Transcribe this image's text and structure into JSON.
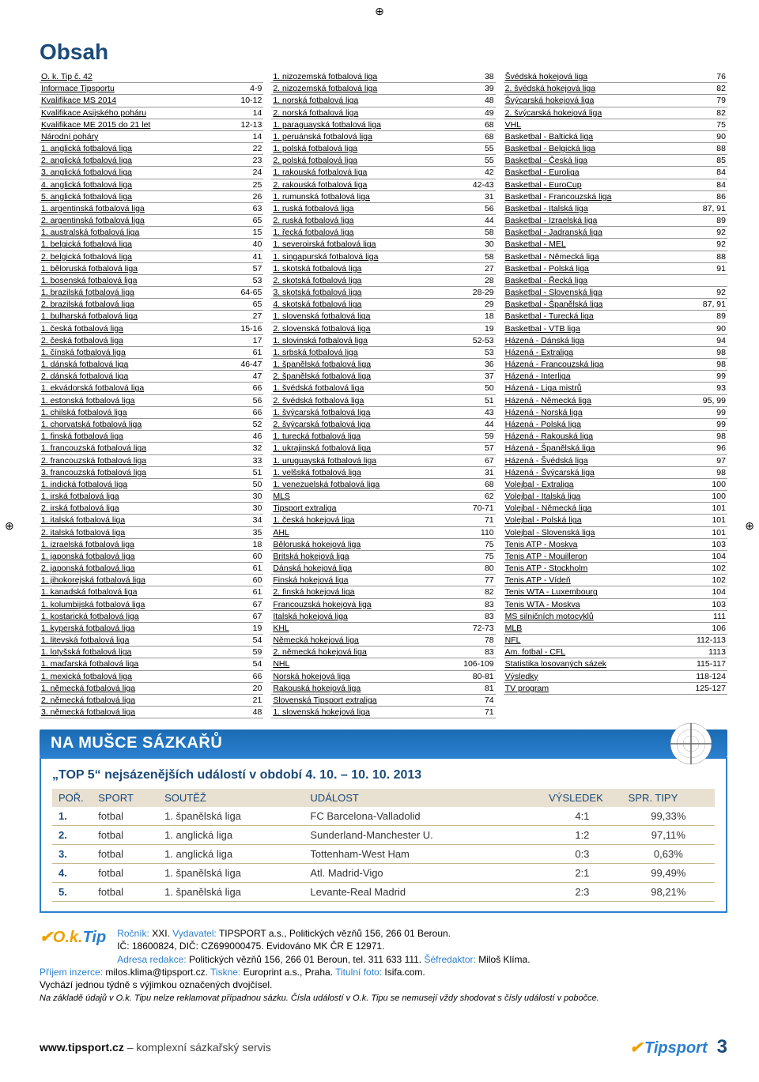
{
  "title": "Obsah",
  "toc_columns": [
    [
      [
        "O. k. Tip č. 42",
        ""
      ],
      [
        "Informace Tipsportu",
        "4-9"
      ],
      [
        "Kvalifikace MS 2014",
        "10-12"
      ],
      [
        "Kvalifikace Asijského poháru",
        "14"
      ],
      [
        "Kvalifikace ME 2015 do 21 let",
        "12-13"
      ],
      [
        "Národní poháry",
        "14"
      ],
      [
        "1. anglická fotbalová liga",
        "22"
      ],
      [
        "2. anglická fotbalová liga",
        "23"
      ],
      [
        "3. anglická fotbalová liga",
        "24"
      ],
      [
        "4. anglická fotbalová liga",
        "25"
      ],
      [
        "5. anglická fotbalová liga",
        "26"
      ],
      [
        "1. argentinská fotbalová liga",
        "63"
      ],
      [
        "2. argentinská fotbalová liga",
        "65"
      ],
      [
        "1. australská fotbalová liga",
        "15"
      ],
      [
        "1. belgická fotbalová liga",
        "40"
      ],
      [
        "2. belgická fotbalová liga",
        "41"
      ],
      [
        "1. běloruská fotbalová liga",
        "57"
      ],
      [
        "1. bosenská fotbalová liga",
        "53"
      ],
      [
        "1. brazilská fotbalová liga",
        "64-65"
      ],
      [
        "2. brazilská fotbalová liga",
        "65"
      ],
      [
        "1. bulharská fotbalová liga",
        "27"
      ],
      [
        "1. česká fotbalová liga",
        "15-16"
      ],
      [
        "2. česká fotbalová liga",
        "17"
      ],
      [
        "1. čínská fotbalová liga",
        "61"
      ],
      [
        "1. dánská fotbalová liga",
        "46-47"
      ],
      [
        "2. dánská fotbalová liga",
        "47"
      ],
      [
        "1. ekvádorská fotbalová liga",
        "66"
      ],
      [
        "1. estonská fotbalová liga",
        "56"
      ],
      [
        "1. chilská fotbalová liga",
        "66"
      ],
      [
        "1. chorvatská fotbalová liga",
        "52"
      ],
      [
        "1. finská fotbalová liga",
        "46"
      ],
      [
        "1. francouzská fotbalová liga",
        "32"
      ],
      [
        "2. francouzská fotbalová liga",
        "33"
      ],
      [
        "3. francouzská fotbalová liga",
        "51"
      ],
      [
        "1. indická fotbalová liga",
        "50"
      ],
      [
        "1. irská fotbalová liga",
        "30"
      ],
      [
        "2. irská fotbalová liga",
        "30"
      ],
      [
        "1. italská fotbalová liga",
        "34"
      ],
      [
        "2. italská fotbalová liga",
        "35"
      ],
      [
        "1. izraelská fotbalová liga",
        "18"
      ],
      [
        "1. japonská fotbalová liga",
        "60"
      ],
      [
        "2. japonská fotbalová liga",
        "61"
      ],
      [
        "1. jihokorejská fotbalová liga",
        "60"
      ],
      [
        "1. kanadská fotbalová liga",
        "61"
      ],
      [
        "1. kolumbijská fotbalová liga",
        "67"
      ],
      [
        "1. kostarická fotbalová liga",
        "67"
      ],
      [
        "1. kyperská fotbalová liga",
        "19"
      ],
      [
        "1. litevská fotbalová liga",
        "54"
      ],
      [
        "1. lotyšská fotbalová liga",
        "59"
      ],
      [
        "1. maďarská fotbalová liga",
        "54"
      ],
      [
        "1. mexická fotbalová liga",
        "66"
      ],
      [
        "1. německá fotbalová liga",
        "20"
      ],
      [
        "2. německá fotbalová liga",
        "21"
      ],
      [
        "3. německá fotbalová liga",
        "48"
      ]
    ],
    [
      [
        "1. nizozemská fotbalová liga",
        "38"
      ],
      [
        "2. nizozemská fotbalová liga",
        "39"
      ],
      [
        "1. norská fotbalová liga",
        "48"
      ],
      [
        "2. norská fotbalová liga",
        "49"
      ],
      [
        "1. paraguayská fotbalová liga",
        "68"
      ],
      [
        "1. peruánská fotbalová liga",
        "68"
      ],
      [
        "1. polská fotbalová liga",
        "55"
      ],
      [
        "2. polská fotbalová liga",
        "55"
      ],
      [
        "1. rakouská fotbalová liga",
        "42"
      ],
      [
        "2. rakouská fotbalová liga",
        "42-43"
      ],
      [
        "1. rumunská fotbalová liga",
        "31"
      ],
      [
        "1. ruská fotbalová liga",
        "56"
      ],
      [
        "2. ruská fotbalová liga",
        "44"
      ],
      [
        "1. řecká fotbalová liga",
        "58"
      ],
      [
        "1. severoirská fotbalová liga",
        "30"
      ],
      [
        "1. singapurská fotbalová liga",
        "58"
      ],
      [
        "1. skotská fotbalová liga",
        "27"
      ],
      [
        "2. skotská fotbalová liga",
        "28"
      ],
      [
        "3. skotská fotbalová liga",
        "28-29"
      ],
      [
        "4. skotská fotbalová liga",
        "29"
      ],
      [
        "1. slovenská fotbalová liga",
        "18"
      ],
      [
        "2. slovenská fotbalová liga",
        "19"
      ],
      [
        "1. slovinská fotbalová liga",
        "52-53"
      ],
      [
        "1. srbská fotbalová liga",
        "53"
      ],
      [
        "1. španělská fotbalová liga",
        "36"
      ],
      [
        "2. španělská fotbalová liga",
        "37"
      ],
      [
        "1. švédská fotbalová liga",
        "50"
      ],
      [
        "2. švédská fotbalová liga",
        "51"
      ],
      [
        "1. švýcarská fotbalová liga",
        "43"
      ],
      [
        "2. švýcarská fotbalová liga",
        "44"
      ],
      [
        "1. turecká fotbalová liga",
        "59"
      ],
      [
        "1. ukrajinská fotbalová liga",
        "57"
      ],
      [
        "1. uruguayská fotbalová liga",
        "67"
      ],
      [
        "1. velšská fotbalová liga",
        "31"
      ],
      [
        "1. venezuelská fotbalová liga",
        "68"
      ],
      [
        "MLS",
        "62"
      ],
      [
        "Tipsport extraliga",
        "70-71"
      ],
      [
        "1. česká hokejová liga",
        "71"
      ],
      [
        "AHL",
        "110"
      ],
      [
        "Běloruská hokejová liga",
        "75"
      ],
      [
        "Britská hokejová liga",
        "75"
      ],
      [
        "Dánská hokejová liga",
        "80"
      ],
      [
        "Finská hokejová liga",
        "77"
      ],
      [
        "2. finská hokejová liga",
        "82"
      ],
      [
        "Francouzská hokejová liga",
        "83"
      ],
      [
        "Italská hokejová liga",
        "83"
      ],
      [
        "KHL",
        "72-73"
      ],
      [
        "Německá hokejová liga",
        "78"
      ],
      [
        "2. německá hokejová liga",
        "83"
      ],
      [
        "NHL",
        "106-109"
      ],
      [
        "Norská hokejová liga",
        "80-81"
      ],
      [
        "Rakouská hokejová liga",
        "81"
      ],
      [
        "Slovenská Tipsport extraliga",
        "74"
      ],
      [
        "1. slovenská hokejová liga",
        "71"
      ]
    ],
    [
      [
        "Švédská hokejová liga",
        "76"
      ],
      [
        "2. švédská hokejová liga",
        "82"
      ],
      [
        "Švýcarská hokejová liga",
        "79"
      ],
      [
        "2. švýcarská hokejová liga",
        "82"
      ],
      [
        "VHL",
        "75"
      ],
      [
        "Basketbal - Baltická liga",
        "90"
      ],
      [
        "Basketbal - Belgická liga",
        "88"
      ],
      [
        "Basketbal - Česká liga",
        "85"
      ],
      [
        "Basketbal - Euroliga",
        "84"
      ],
      [
        "Basketbal - EuroCup",
        "84"
      ],
      [
        "Basketbal - Francouzská liga",
        "86"
      ],
      [
        "Basketbal - Italská liga",
        "87, 91"
      ],
      [
        "Basketbal - Izraelská liga",
        "89"
      ],
      [
        "Basketbal - Jadranská liga",
        "92"
      ],
      [
        "Basketbal - MEL",
        "92"
      ],
      [
        "Basketbal - Německá liga",
        "88"
      ],
      [
        "Basketbal - Polská liga",
        "91"
      ],
      [
        "Basketbal - Řecká liga",
        ""
      ],
      [
        "Basketbal - Slovenská liga",
        "92"
      ],
      [
        "Basketbal - Španělská liga",
        "87, 91"
      ],
      [
        "Basketbal - Turecká liga",
        "89"
      ],
      [
        "Basketbal - VTB liga",
        "90"
      ],
      [
        "Házená - Dánská liga",
        "94"
      ],
      [
        "Házená - Extraliga",
        "98"
      ],
      [
        "Házená - Francouzská liga",
        "98"
      ],
      [
        "Házená - Interliga",
        "99"
      ],
      [
        "Házená - Liga mistrů",
        "93"
      ],
      [
        "Házená - Německá liga",
        "95, 99"
      ],
      [
        "Házená - Norská liga",
        "99"
      ],
      [
        "Házená - Polská liga",
        "99"
      ],
      [
        "Házená - Rakouská liga",
        "98"
      ],
      [
        "Házená - Španělská liga",
        "96"
      ],
      [
        "Házená - Švédská liga",
        "97"
      ],
      [
        "Házená - Švýcarská liga",
        "98"
      ],
      [
        "Volejbal - Extraliga",
        "100"
      ],
      [
        "Volejbal - Italská liga",
        "100"
      ],
      [
        "Volejbal - Německá liga",
        "101"
      ],
      [
        "Volejbal - Polská liga",
        "101"
      ],
      [
        "Volejbal - Slovenská liga",
        "101"
      ],
      [
        "Tenis ATP - Moskva",
        "103"
      ],
      [
        "Tenis ATP - Mouilleron",
        "104"
      ],
      [
        "Tenis ATP - Stockholm",
        "102"
      ],
      [
        "Tenis ATP - Vídeň",
        "102"
      ],
      [
        "Tenis WTA - Luxembourg",
        "104"
      ],
      [
        "Tenis WTA - Moskva",
        "103"
      ],
      [
        "MS silničních motocyklů",
        "111"
      ],
      [
        "MLB",
        "106"
      ],
      [
        "NFL",
        "112-113"
      ],
      [
        "Am. fotbal - CFL",
        "1113"
      ],
      [
        "Statistika losovaných sázek",
        "115-117"
      ],
      [
        "Výsledky",
        "118-124"
      ],
      [
        "TV program",
        "125-127"
      ]
    ]
  ],
  "banner": "NA MUŠCE SÁZKAŘŮ",
  "top5": {
    "title": "„TOP 5“ nejsázenějších událostí v období 4. 10. – 10. 10. 2013",
    "headers": [
      "POŘ.",
      "SPORT",
      "SOUTĚŽ",
      "UDÁLOST",
      "VÝSLEDEK",
      "SPR. TIPY"
    ],
    "col_widths": [
      "6%",
      "10%",
      "22%",
      "36%",
      "12%",
      "14%"
    ],
    "rows": [
      [
        "1.",
        "fotbal",
        "1. španělská liga",
        "FC Barcelona-Valladolid",
        "4:1",
        "99,33%"
      ],
      [
        "2.",
        "fotbal",
        "1. anglická liga",
        "Sunderland-Manchester U.",
        "1:2",
        "97,11%"
      ],
      [
        "3.",
        "fotbal",
        "1. anglická liga",
        "Tottenham-West Ham",
        "0:3",
        "0,63%"
      ],
      [
        "4.",
        "fotbal",
        "1. španělská liga",
        "Atl. Madrid-Vigo",
        "2:1",
        "99,49%"
      ],
      [
        "5.",
        "fotbal",
        "1. španělská liga",
        "Levante-Real Madrid",
        "2:3",
        "98,21%"
      ]
    ]
  },
  "imprint": {
    "logo": "O.k.Tip",
    "line1_a": "Ročník:",
    "line1_b": " XXI. ",
    "line1_c": "Vydavatel:",
    "line1_d": " TIPSPORT a.s., Politických vězňů 156, 266 01 Beroun.",
    "line2": "IČ: 18600824, DIČ: CZ699000475. Evidováno MK ČR E 12971.",
    "line3_a": "Adresa redakce:",
    "line3_b": " Politických vězňů 156, 266 01 Beroun, tel. 311 633 111. ",
    "line3_c": "Šéfredaktor:",
    "line3_d": " Miloš Klíma.",
    "line4_a": "Příjem inzerce:",
    "line4_b": " milos.klima@tipsport.cz. ",
    "line4_c": "Tiskne:",
    "line4_d": " Europrint a.s., Praha. ",
    "line4_e": "Titulní foto:",
    "line4_f": " Isifa.com.",
    "line5": "Vychází jednou týdně s výjimkou označených dvojčísel.",
    "line6": "Na základě údajů v O.k. Tipu nelze reklamovat případnou sázku. Čísla událostí v O.k. Tipu se nemusejí vždy shodovat s čísly událostí v pobočce."
  },
  "footer": {
    "url": "www.tipsport.cz",
    "tag": " – komplexní sázkařský servis",
    "brand": "Tipsport",
    "page": "3"
  }
}
